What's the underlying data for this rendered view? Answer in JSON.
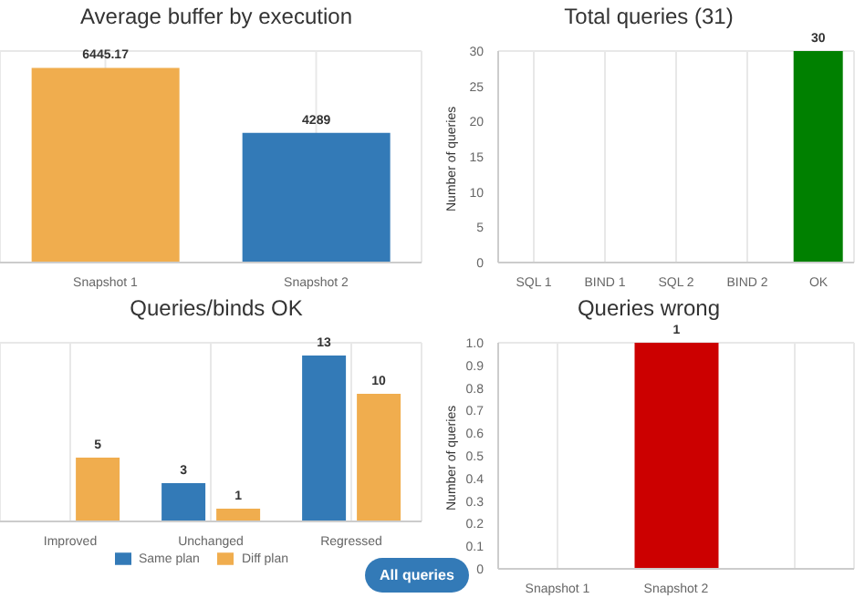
{
  "chart_data": [
    {
      "type": "bar",
      "title": "Average buffer by execution",
      "categories": [
        "Snapshot 1",
        "Snapshot 2"
      ],
      "values": [
        6445.17,
        4289
      ],
      "colors": [
        "#f0ad4e",
        "#337ab7"
      ],
      "ylim": [
        0,
        7000
      ],
      "grid": true,
      "data_labels": true,
      "tick_labels": "x"
    },
    {
      "type": "bar",
      "title": "Total queries (31)",
      "ylabel": "Number of queries",
      "categories": [
        "SQL 1",
        "BIND 1",
        "SQL 2",
        "BIND 2",
        "OK"
      ],
      "values": [
        0,
        0,
        0,
        0,
        30
      ],
      "colors": [
        "#f0ad4e",
        "#f0ad4e",
        "#f0ad4e",
        "#f0ad4e",
        "#008000"
      ],
      "value_labels": [
        null,
        null,
        null,
        null,
        "30"
      ],
      "ylim": [
        0,
        30
      ],
      "yticks": [
        0,
        5,
        10,
        15,
        20,
        25,
        30
      ],
      "grid": true
    },
    {
      "type": "bar",
      "title": "Queries/binds OK",
      "categories": [
        "Improved",
        "Unchanged",
        "Regressed"
      ],
      "series": [
        {
          "name": "Same plan",
          "color": "#337ab7",
          "values": [
            null,
            3,
            13
          ]
        },
        {
          "name": "Diff plan",
          "color": "#f0ad4e",
          "values": [
            5,
            1,
            10
          ]
        }
      ],
      "ylim": [
        0,
        14
      ],
      "grid": true,
      "data_labels": true,
      "legend": "bottom",
      "tick_labels": "x",
      "annotations": [
        "All queries"
      ]
    },
    {
      "type": "bar",
      "title": "Queries wrong",
      "ylabel": "Number of queries",
      "categories": [
        "Snapshot 1",
        "Snapshot 2",
        null
      ],
      "values": [
        0,
        1,
        0
      ],
      "colors": [
        "#cc0000",
        "#cc0000",
        "#cc0000"
      ],
      "value_labels": [
        null,
        "1",
        null
      ],
      "ylim": [
        0,
        1
      ],
      "yticks": [
        "0",
        0.1,
        0.2,
        0.3,
        0.4,
        0.5,
        0.6,
        0.7,
        0.8,
        0.9,
        {
          "value": 1,
          "label": "1.0"
        }
      ],
      "grid": true
    }
  ]
}
